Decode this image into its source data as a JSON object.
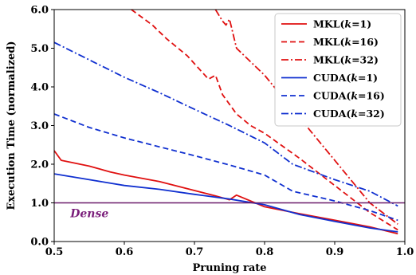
{
  "chart_data": {
    "type": "line",
    "xlabel": "Pruning rate",
    "ylabel": "Execution Time (normalized)",
    "xlim": [
      0.5,
      1.0
    ],
    "ylim": [
      0.0,
      6.0
    ],
    "xticks": [
      "0.5",
      "0.6",
      "0.7",
      "0.8",
      "0.9",
      "1.0"
    ],
    "yticks": [
      "0.0",
      "1.0",
      "2.0",
      "3.0",
      "4.0",
      "5.0",
      "6.0"
    ],
    "grid": false,
    "legend_position": "top-right",
    "annotation": {
      "text": "Dense",
      "color": "#7b1f7b"
    },
    "reference_line": {
      "y": 1.0,
      "color": "#6a1b6a"
    },
    "series": [
      {
        "name": "MKL(k=1)",
        "color": "#e01010",
        "style": "solid",
        "x": [
          0.5,
          0.51,
          0.55,
          0.58,
          0.6,
          0.65,
          0.7,
          0.73,
          0.75,
          0.76,
          0.8,
          0.85,
          0.9,
          0.95,
          0.99
        ],
        "y": [
          2.35,
          2.1,
          1.95,
          1.8,
          1.72,
          1.55,
          1.32,
          1.18,
          1.08,
          1.2,
          0.9,
          0.72,
          0.55,
          0.38,
          0.2
        ]
      },
      {
        "name": "MKL(k=16)",
        "color": "#e01010",
        "style": "dashed",
        "x": [
          0.61,
          0.64,
          0.66,
          0.69,
          0.72,
          0.73,
          0.74,
          0.76,
          0.78,
          0.8,
          0.85,
          0.9,
          0.95,
          0.99
        ],
        "y": [
          6.0,
          5.6,
          5.25,
          4.8,
          4.2,
          4.3,
          3.8,
          3.3,
          3.0,
          2.8,
          2.15,
          1.45,
          0.75,
          0.3
        ]
      },
      {
        "name": "MKL(k=32)",
        "color": "#e01010",
        "style": "dashdot",
        "x": [
          0.73,
          0.74,
          0.745,
          0.75,
          0.76,
          0.8,
          0.85,
          0.9,
          0.95,
          0.99
        ],
        "y": [
          6.0,
          5.7,
          5.6,
          5.75,
          5.0,
          4.3,
          3.2,
          2.1,
          1.0,
          0.45
        ]
      },
      {
        "name": "CUDA(k=1)",
        "color": "#1030d0",
        "style": "solid",
        "x": [
          0.5,
          0.55,
          0.6,
          0.65,
          0.7,
          0.75,
          0.8,
          0.85,
          0.9,
          0.95,
          0.99
        ],
        "y": [
          1.75,
          1.6,
          1.45,
          1.35,
          1.22,
          1.1,
          0.95,
          0.7,
          0.52,
          0.35,
          0.25
        ]
      },
      {
        "name": "CUDA(k=16)",
        "color": "#1030d0",
        "style": "dashed",
        "x": [
          0.5,
          0.55,
          0.6,
          0.65,
          0.7,
          0.75,
          0.8,
          0.84,
          0.9,
          0.95,
          0.99
        ],
        "y": [
          3.3,
          2.95,
          2.68,
          2.45,
          2.22,
          1.98,
          1.72,
          1.3,
          1.05,
          0.8,
          0.55
        ]
      },
      {
        "name": "CUDA(k=32)",
        "color": "#1030d0",
        "style": "dashdot",
        "x": [
          0.5,
          0.55,
          0.6,
          0.65,
          0.7,
          0.75,
          0.8,
          0.84,
          0.9,
          0.95,
          0.99
        ],
        "y": [
          5.15,
          4.7,
          4.25,
          3.85,
          3.42,
          3.0,
          2.55,
          2.0,
          1.6,
          1.3,
          0.92
        ]
      }
    ]
  }
}
